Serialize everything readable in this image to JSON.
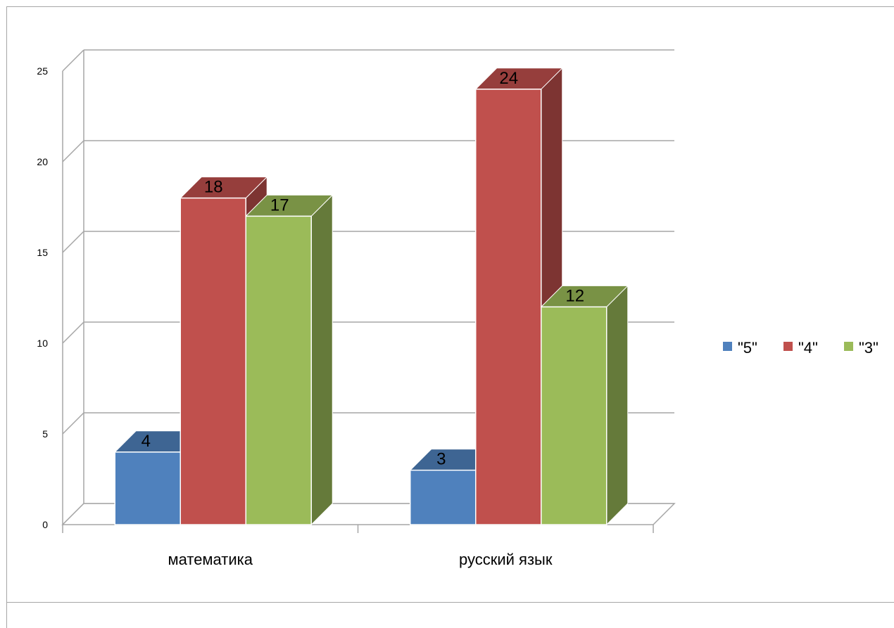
{
  "chart_data": {
    "type": "bar",
    "style": "3d-clustered-column",
    "categories": [
      "математика",
      "русский язык"
    ],
    "series": [
      {
        "name": "\"5\"",
        "values": [
          4,
          3
        ],
        "color": "#4f81bd"
      },
      {
        "name": "\"4\"",
        "values": [
          18,
          24
        ],
        "color": "#c0504d"
      },
      {
        "name": "\"3\"",
        "values": [
          17,
          12
        ],
        "color": "#9bbb59"
      }
    ],
    "ylim": [
      0,
      25
    ],
    "yticks": [
      "0",
      "5",
      "10",
      "15",
      "20",
      "25"
    ],
    "grid": true,
    "legend": "right",
    "data_labels": true
  }
}
